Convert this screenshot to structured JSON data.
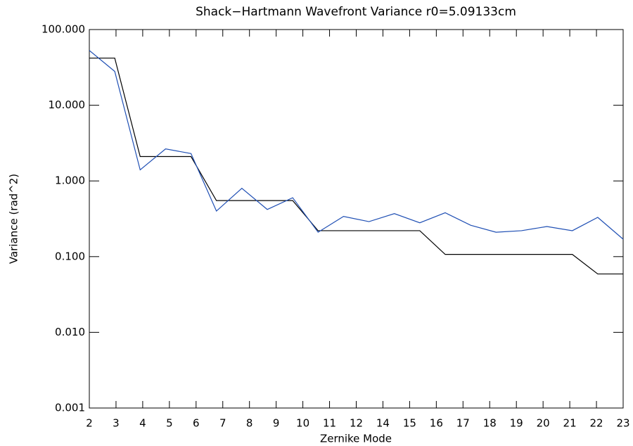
{
  "chart_data": {
    "type": "line",
    "title": "Shack−Hartmann Wavefront Variance r0=5.09133cm",
    "xlabel": "Zernike Mode",
    "ylabel": "Variance (rad^2)",
    "x": [
      2,
      3,
      4,
      5,
      6,
      7,
      8,
      9,
      10,
      11,
      12,
      13,
      14,
      15,
      16,
      17,
      18,
      19,
      20,
      21,
      22,
      23
    ],
    "series": [
      {
        "color": "#000000",
        "values": [
          42,
          42,
          2.1,
          2.1,
          2.1,
          0.55,
          0.55,
          0.55,
          0.55,
          0.22,
          0.22,
          0.22,
          0.22,
          0.22,
          0.107,
          0.107,
          0.107,
          0.107,
          0.107,
          0.107,
          0.059,
          0.059
        ]
      },
      {
        "color": "#1f4fb4",
        "values": [
          53,
          28,
          1.4,
          2.65,
          2.3,
          0.4,
          0.8,
          0.42,
          0.6,
          0.21,
          0.34,
          0.29,
          0.37,
          0.28,
          0.38,
          0.26,
          0.21,
          0.22,
          0.25,
          0.22,
          0.33,
          0.17
        ]
      }
    ],
    "xlim": [
      2,
      23
    ],
    "xticks": [
      2,
      {
        "value": 3.05,
        "label": "3"
      },
      {
        "value": 4.1,
        "label": "4"
      },
      {
        "value": 5.15,
        "label": "5"
      },
      {
        "value": 6.2,
        "label": "6"
      },
      {
        "value": 7.25,
        "label": "7"
      },
      {
        "value": 8.3,
        "label": "8"
      },
      {
        "value": 9.35,
        "label": "9"
      },
      {
        "value": 10.4,
        "label": "10"
      },
      {
        "value": 11.45,
        "label": "11"
      },
      {
        "value": 12.5,
        "label": "12"
      },
      {
        "value": 13.55,
        "label": "14"
      },
      {
        "value": 14.6,
        "label": "15"
      },
      {
        "value": 15.65,
        "label": "16"
      },
      {
        "value": 16.7,
        "label": "17"
      },
      {
        "value": 17.75,
        "label": "18"
      },
      {
        "value": 18.8,
        "label": "19"
      },
      {
        "value": 19.85,
        "label": "20"
      },
      {
        "value": 20.9,
        "label": "21"
      },
      {
        "value": 21.95,
        "label": "22"
      },
      23
    ],
    "ylim": [
      0.001,
      100
    ],
    "yticks": [
      {
        "value": 0.001,
        "label": "0.001"
      },
      {
        "value": 0.01,
        "label": "0.010"
      },
      {
        "value": 0.1,
        "label": "0.100"
      },
      {
        "value": 1,
        "label": "1.000"
      },
      {
        "value": 10,
        "label": "10.000"
      },
      {
        "value": 100,
        "label": "100.000"
      }
    ],
    "ylog": true,
    "grid": false
  }
}
